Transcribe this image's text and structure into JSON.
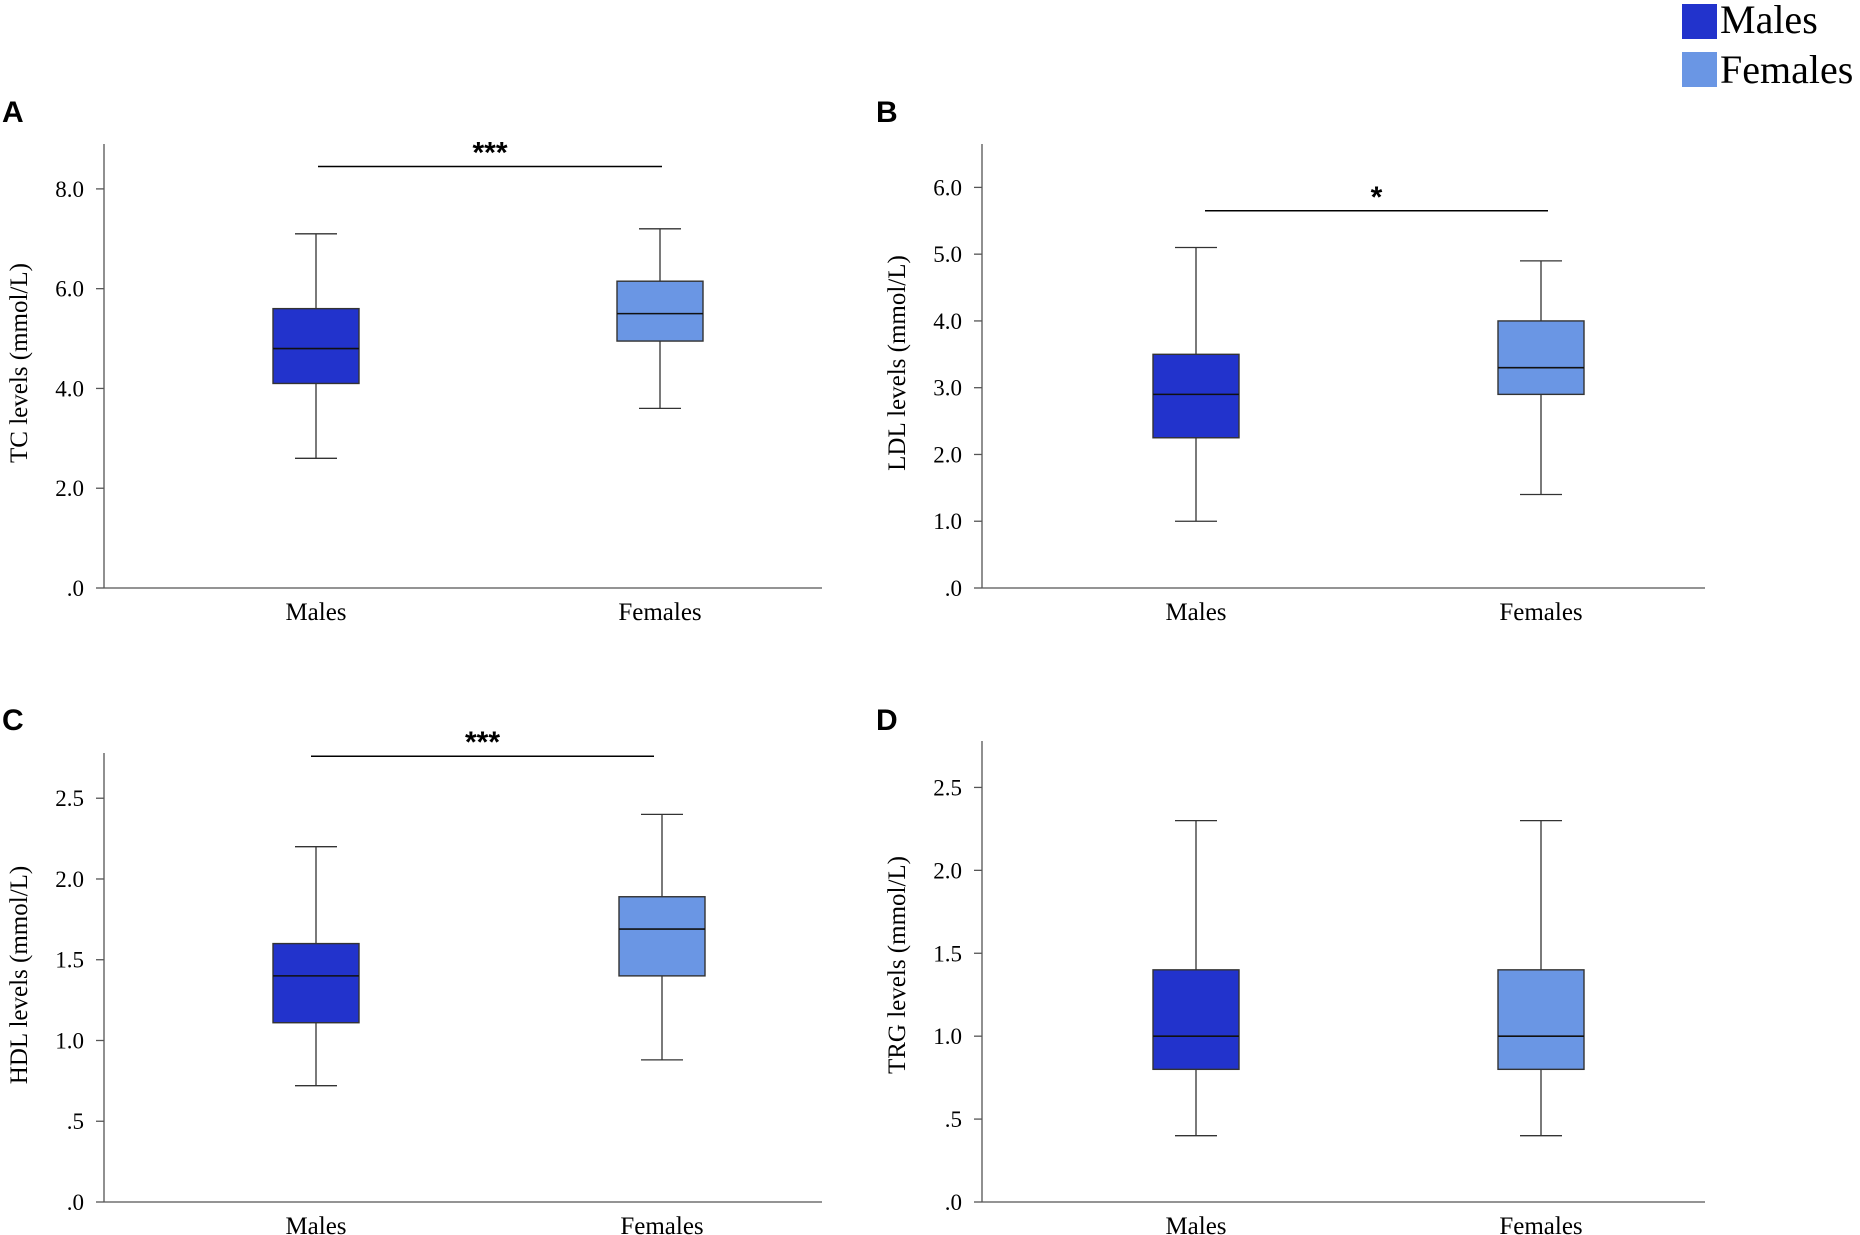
{
  "legend": [
    {
      "name": "Males",
      "color": "#2233CC"
    },
    {
      "name": "Females",
      "color": "#6A96E4"
    }
  ],
  "chart_data": [
    {
      "type": "boxplot",
      "panel": "A",
      "ylabel": "TC levels (mmol/L)",
      "ylim": [
        0,
        8.9
      ],
      "ticks": [
        0,
        2,
        4,
        6,
        8
      ],
      "tick_labels": [
        ".0",
        "2.0",
        "4.0",
        "6.0",
        "8.0"
      ],
      "categories": [
        "Males",
        "Females"
      ],
      "boxes": [
        {
          "name": "Males",
          "min": 2.6,
          "q1": 4.1,
          "median": 4.8,
          "q3": 5.6,
          "max": 7.1,
          "color": "#2233CC"
        },
        {
          "name": "Females",
          "min": 3.6,
          "q1": 4.95,
          "median": 5.5,
          "q3": 6.15,
          "max": 7.2,
          "color": "#6A96E4"
        }
      ],
      "significance": {
        "label": "***",
        "y": 8.45
      }
    },
    {
      "type": "boxplot",
      "panel": "B",
      "ylabel": "LDL levels (mmol/L)",
      "ylim": [
        0,
        6.65
      ],
      "ticks": [
        0,
        1,
        2,
        3,
        4,
        5,
        6
      ],
      "tick_labels": [
        ".0",
        "1.0",
        "2.0",
        "3.0",
        "4.0",
        "5.0",
        "6.0"
      ],
      "categories": [
        "Males",
        "Females"
      ],
      "boxes": [
        {
          "name": "Males",
          "min": 1.0,
          "q1": 2.25,
          "median": 2.9,
          "q3": 3.5,
          "max": 5.1,
          "color": "#2233CC"
        },
        {
          "name": "Females",
          "min": 1.4,
          "q1": 2.9,
          "median": 3.3,
          "q3": 4.0,
          "max": 4.9,
          "color": "#6A96E4"
        }
      ],
      "significance": {
        "label": "*",
        "y": 5.65
      }
    },
    {
      "type": "boxplot",
      "panel": "C",
      "ylabel": "HDL levels (mmol/L)",
      "ylim": [
        0,
        2.78
      ],
      "ticks": [
        0,
        0.5,
        1.0,
        1.5,
        2.0,
        2.5
      ],
      "tick_labels": [
        ".0",
        ".5",
        "1.0",
        "1.5",
        "2.0",
        "2.5"
      ],
      "categories": [
        "Males",
        "Females"
      ],
      "boxes": [
        {
          "name": "Males",
          "min": 0.72,
          "q1": 1.11,
          "median": 1.4,
          "q3": 1.6,
          "max": 2.2,
          "color": "#2233CC"
        },
        {
          "name": "Females",
          "min": 0.88,
          "q1": 1.4,
          "median": 1.69,
          "q3": 1.89,
          "max": 2.4,
          "color": "#6A96E4"
        }
      ],
      "significance": {
        "label": "***",
        "y": 2.76
      }
    },
    {
      "type": "boxplot",
      "panel": "D",
      "ylabel": "TRG levels (mmol/L)",
      "ylim": [
        0,
        2.78
      ],
      "ticks": [
        0,
        0.5,
        1.0,
        1.5,
        2.0,
        2.5
      ],
      "tick_labels": [
        ".0",
        ".5",
        "1.0",
        "1.5",
        "2.0",
        "2.5"
      ],
      "categories": [
        "Males",
        "Females"
      ],
      "boxes": [
        {
          "name": "Males",
          "min": 0.4,
          "q1": 0.8,
          "median": 1.0,
          "q3": 1.4,
          "max": 2.3,
          "color": "#2233CC"
        },
        {
          "name": "Females",
          "min": 0.4,
          "q1": 0.8,
          "median": 1.0,
          "q3": 1.4,
          "max": 2.3,
          "color": "#6A96E4"
        }
      ],
      "significance": null
    }
  ]
}
